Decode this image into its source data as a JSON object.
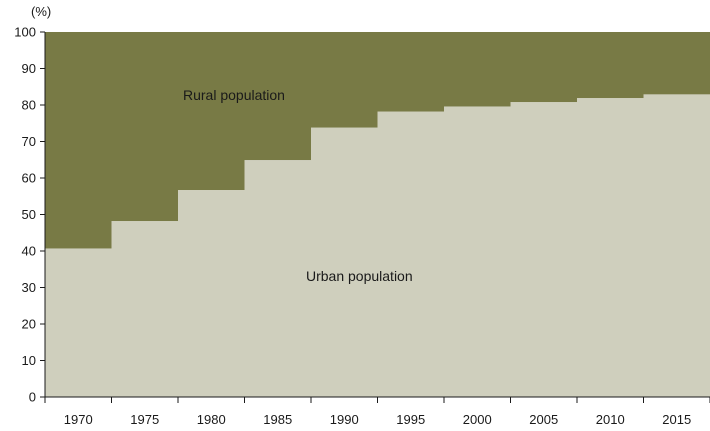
{
  "chart_data": {
    "type": "area",
    "step": true,
    "ylabel": "(%)",
    "ylim": [
      0,
      100
    ],
    "yticks": [
      0,
      10,
      20,
      30,
      40,
      50,
      60,
      70,
      80,
      90,
      100
    ],
    "categories": [
      "1970",
      "1975",
      "1980",
      "1985",
      "1990",
      "1995",
      "2000",
      "2005",
      "2010",
      "2015"
    ],
    "grid": false,
    "legend": "none",
    "stacked": true,
    "series": [
      {
        "name": "Urban population",
        "values": [
          40.7,
          48.2,
          56.7,
          64.9,
          73.8,
          78.2,
          79.6,
          80.8,
          81.9,
          82.9
        ],
        "color": "#cfcfbd"
      },
      {
        "name": "Rural population",
        "values": [
          59.3,
          51.8,
          43.3,
          35.1,
          26.2,
          21.8,
          20.4,
          19.2,
          18.1,
          17.1
        ],
        "color": "#787a45"
      }
    ]
  }
}
